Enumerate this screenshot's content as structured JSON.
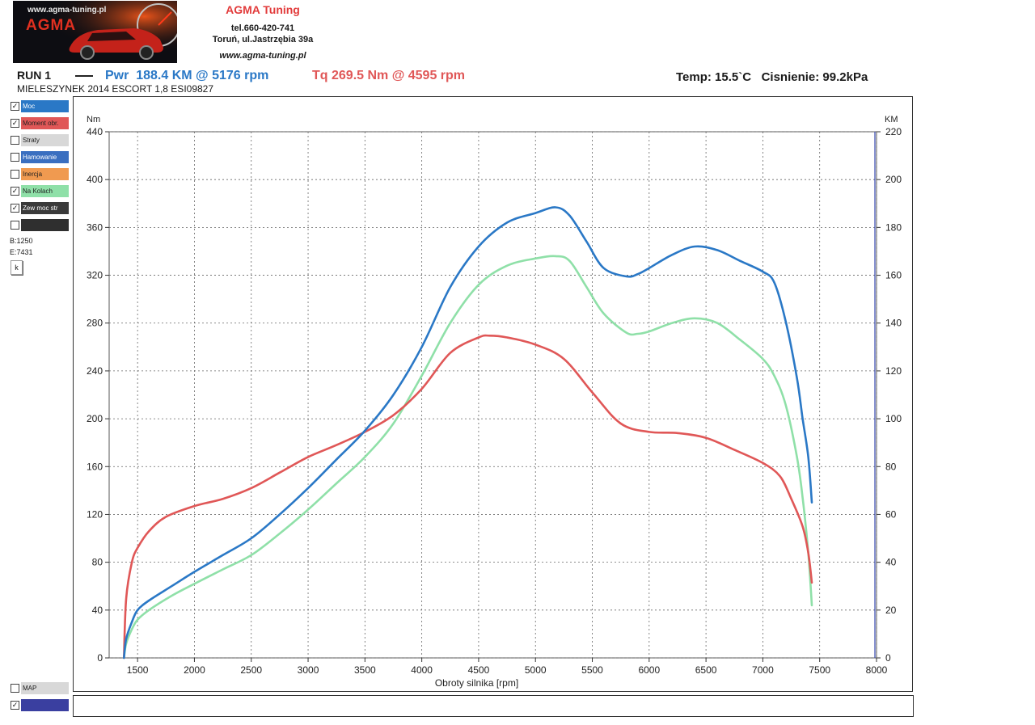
{
  "header": {
    "logo_url": "www.agma-tuning.pl",
    "logo_name": "AGMA",
    "company_name": "AGMA Tuning",
    "phone": "tel.660-420-741",
    "address": "Toruń, ul.Jastrzębia 39a",
    "website": "www.agma-tuning.pl"
  },
  "run": {
    "label": "RUN 1",
    "power_summary": "Pwr  188.4 KM @ 5176 rpm",
    "torque_summary": "Tq 269.5 Nm @ 4595 rpm",
    "conditions": "Temp: 15.5`C   Cisnienie: 99.2kPa",
    "vehicle": "MIELESZYNEK 2014 ESCORT 1,8 ESI09827"
  },
  "legend": [
    {
      "label": "Moc",
      "checked": true,
      "color": "#2a78c6"
    },
    {
      "label": "Moment obr.",
      "checked": true,
      "color": "#e05757"
    },
    {
      "label": "Straty",
      "checked": false,
      "color": "#d8d8d8"
    },
    {
      "label": "Hamowanie",
      "checked": false,
      "color": "#3a6fc0"
    },
    {
      "label": "Inercja",
      "checked": false,
      "color": "#f09a50"
    },
    {
      "label": "Na Kolach",
      "checked": true,
      "color": "#8fe0a8"
    },
    {
      "label": "Zew moc str",
      "checked": true,
      "color": "#3a3a3a"
    },
    {
      "label": "",
      "checked": false,
      "color": "#2f2f2f"
    }
  ],
  "sidebar": {
    "begin": "B:1250",
    "end": "E:7431",
    "k_button": "k",
    "map_label": "MAP",
    "map_checked": false,
    "last_checked": true
  },
  "chart_data": {
    "type": "line",
    "xlabel": "Obroty silnika [rpm]",
    "ylabel_left": "Nm",
    "ylabel_right": "KM",
    "xlim": [
      1250,
      8000
    ],
    "xticks": [
      1500,
      2000,
      2500,
      3000,
      3500,
      4000,
      4500,
      5000,
      5500,
      6000,
      6500,
      7000,
      7500,
      8000
    ],
    "ylim_left": [
      0,
      440
    ],
    "yticks_left": [
      0,
      40,
      80,
      120,
      160,
      200,
      240,
      280,
      320,
      360,
      400,
      440
    ],
    "ylim_right": [
      0,
      220
    ],
    "yticks_right": [
      0,
      20,
      40,
      60,
      80,
      100,
      120,
      140,
      160,
      180,
      200,
      220
    ],
    "grid": true,
    "series": [
      {
        "name": "Moc",
        "axis": "right",
        "color": "#2a78c6",
        "x": [
          1380,
          1400,
          1450,
          1500,
          1600,
          1800,
          2000,
          2250,
          2500,
          2750,
          3000,
          3250,
          3500,
          3750,
          4000,
          4250,
          4500,
          4750,
          5000,
          5176,
          5300,
          5450,
          5600,
          5800,
          5900,
          6000,
          6200,
          6400,
          6600,
          6800,
          7000,
          7100,
          7200,
          7300,
          7350,
          7400,
          7431
        ],
        "y": [
          0,
          8,
          15,
          20,
          24,
          30,
          36,
          43,
          50,
          60,
          71,
          83,
          95,
          110,
          130,
          155,
          172,
          182,
          186,
          188.4,
          185,
          174,
          163,
          159.5,
          160.5,
          163,
          168.5,
          172,
          170.5,
          166,
          161.5,
          157,
          141,
          117,
          100,
          84,
          65
        ]
      },
      {
        "name": "Moment obr.",
        "axis": "left",
        "color": "#e05757",
        "x": [
          1380,
          1400,
          1450,
          1500,
          1600,
          1750,
          2000,
          2250,
          2500,
          2750,
          3000,
          3250,
          3500,
          3750,
          4000,
          4250,
          4500,
          4595,
          4750,
          5000,
          5250,
          5500,
          5750,
          6000,
          6250,
          6500,
          6750,
          7000,
          7150,
          7250,
          7350,
          7400,
          7431
        ],
        "y": [
          0,
          50,
          80,
          92,
          106,
          118,
          127,
          133,
          142,
          155,
          168,
          178,
          189,
          203,
          225,
          255,
          268,
          269.5,
          268,
          262,
          250,
          222,
          196,
          189,
          188,
          184,
          174,
          163,
          152,
          133,
          110,
          88,
          63
        ]
      },
      {
        "name": "Na Kolach",
        "axis": "right",
        "color": "#8fe0a8",
        "x": [
          1380,
          1400,
          1450,
          1500,
          1600,
          1800,
          2000,
          2250,
          2500,
          2750,
          3000,
          3250,
          3500,
          3750,
          4000,
          4250,
          4500,
          4750,
          5000,
          5176,
          5300,
          5450,
          5600,
          5800,
          5900,
          6000,
          6200,
          6400,
          6600,
          6800,
          7000,
          7100,
          7200,
          7300,
          7350,
          7400,
          7431
        ],
        "y": [
          0,
          6,
          12,
          16,
          20,
          26,
          31,
          37,
          43,
          52,
          62,
          73,
          84,
          98,
          118,
          140,
          156,
          164,
          167,
          168,
          166,
          155,
          144,
          136,
          135.5,
          136.5,
          140,
          142,
          140,
          133,
          125,
          118,
          106,
          84,
          67,
          44,
          22
        ]
      }
    ]
  }
}
